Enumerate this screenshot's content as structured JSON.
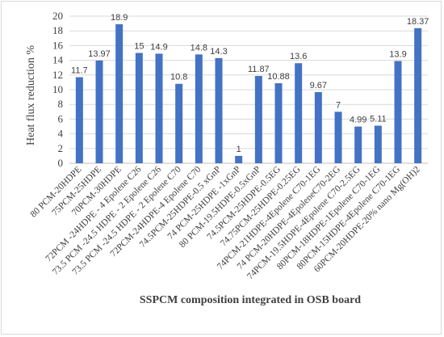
{
  "chart_data": {
    "type": "bar",
    "title": "",
    "xlabel": "SSPCM composition integrated in OSB board",
    "ylabel": "Heat flux reduction %",
    "ylim": [
      0,
      20
    ],
    "yticks": [
      0,
      2,
      4,
      6,
      8,
      10,
      12,
      14,
      16,
      18,
      20
    ],
    "grid": true,
    "legend": "none",
    "bar_color": "#4472c4",
    "categories": [
      "80 PCM-20HDPE",
      "75PCM-25HDPE",
      "70PCM-30HDPE",
      "72PCM -24HDPE - 4 Epolene C26",
      "73.5 PCM -24.5 HDPE - 2 Epolene C26",
      "73.5 PCM -24.5 HDPE - 2 Epolene C70",
      "72PCM-24HDPE-4 Epolene C70",
      "74.5PCM-25HDPE-0.5 xGnP",
      "74 PCM-25HDPE -1xGnP",
      "80 PCM-19.5HDPE-0.5xGnP",
      "74.5PCM-25HDPE-0.5EG",
      "74.75PCM-25HDPE-0.25EG",
      "74PCM-21HDPE-4Epolene C70-1EG",
      "74 PCM-20HDPE-4EpoleneC70-2EG",
      "74PCM-19.5HDPE-4Epolene C70-2.5EG",
      "80PCM-18HDPE-1Epolene C70-1EG",
      "80PCM-15HDPE-4Epolene C70-1EG",
      "60PCM-20HDPE-20% nano Mg(OH)2"
    ],
    "values": [
      11.7,
      13.97,
      18.9,
      15,
      14.9,
      10.8,
      14.8,
      14.3,
      1,
      11.87,
      10.88,
      13.6,
      9.67,
      7,
      4.99,
      5.11,
      13.9,
      18.37
    ],
    "value_labels": [
      "11.7",
      "13.97",
      "18.9",
      "15",
      "14.9",
      "10.8",
      "14.8",
      "14.3",
      "1",
      "11.87",
      "10.88",
      "13.6",
      "9.67",
      "7",
      "4.99",
      "5.11",
      "13.9",
      "18.37"
    ]
  }
}
